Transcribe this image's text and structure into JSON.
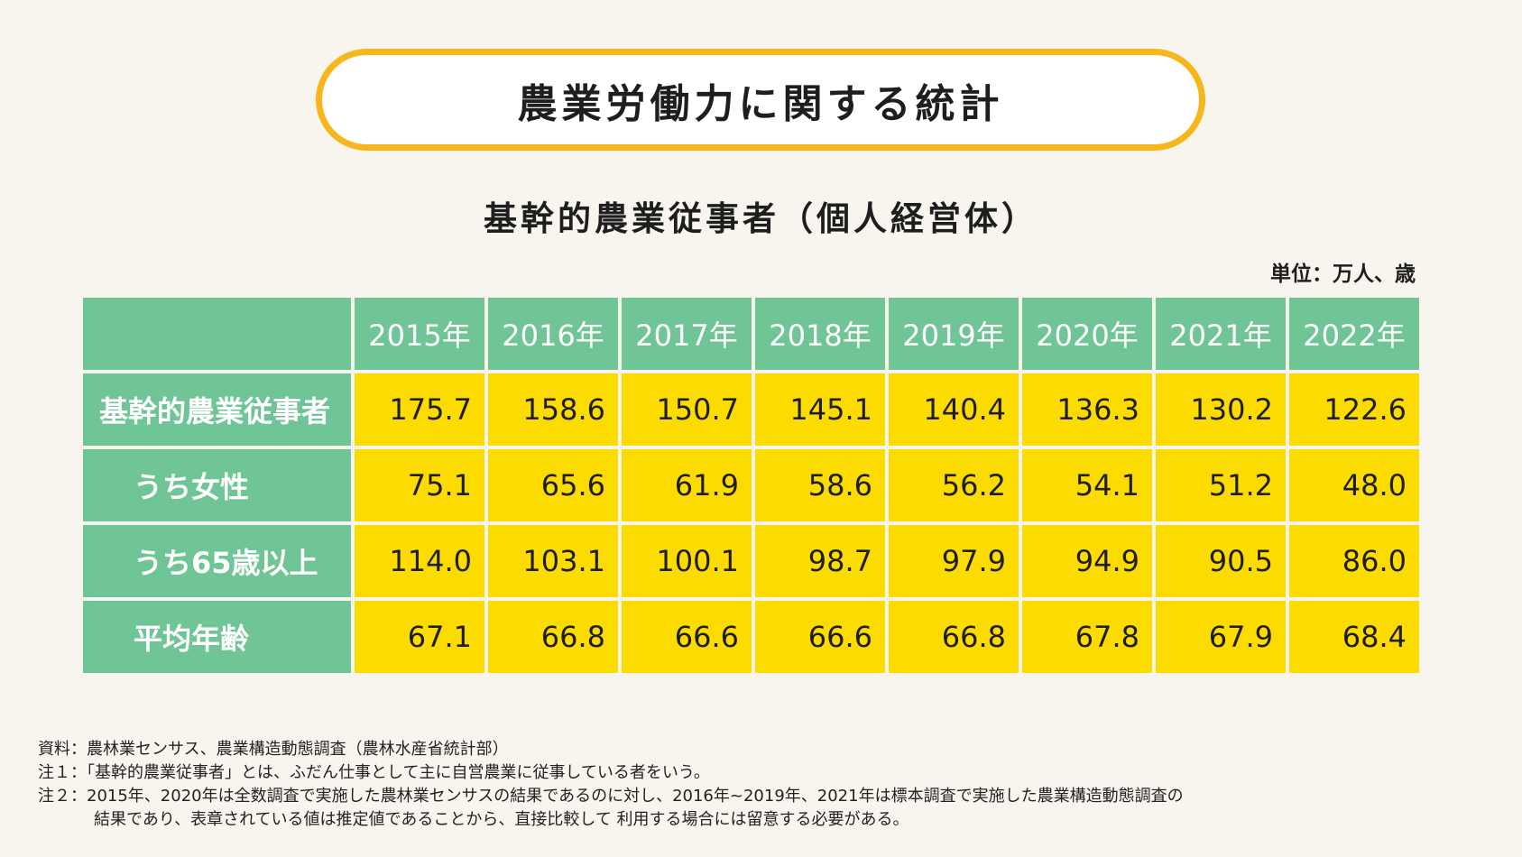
{
  "title": "農業労働力に関する統計",
  "subtitle": "基幹的農業従事者（個人経営体）",
  "unit": "単位：万人、歳",
  "table": {
    "years": [
      "2015年",
      "2016年",
      "2017年",
      "2018年",
      "2019年",
      "2020年",
      "2021年",
      "2022年"
    ],
    "rows": [
      {
        "label": "基幹的農業従事者",
        "values": [
          "175.7",
          "158.6",
          "150.7",
          "145.1",
          "140.4",
          "136.3",
          "130.2",
          "122.6"
        ]
      },
      {
        "label": "うち女性",
        "values": [
          "75.1",
          "65.6",
          "61.9",
          "58.6",
          "56.2",
          "54.1",
          "51.2",
          "48.0"
        ]
      },
      {
        "label": "うち65歳以上",
        "values": [
          "114.0",
          "103.1",
          "100.1",
          "98.7",
          "97.9",
          "94.9",
          "90.5",
          "86.0"
        ]
      },
      {
        "label": "平均年齢",
        "values": [
          "67.1",
          "66.8",
          "66.6",
          "66.6",
          "66.8",
          "67.8",
          "67.9",
          "68.4"
        ]
      }
    ]
  },
  "notes": {
    "source": "資料：農林業センサス、農業構造動態調査（農林水産省統計部）",
    "note1": "注１：「基幹的農業従事者」とは、ふだん仕事として主に自営農業に従事している者をいう。",
    "note2_line1": "注２：2015年、2020年は全数調査で実施した農林業センサスの結果であるのに対し、2016年~2019年、2021年は標本調査で実施した農業構造動態調査の",
    "note2_line2": "結果であり、表章されている値は推定値であることから、直接比較して 利用する場合には留意する必要がある。"
  },
  "colors": {
    "header_green": "#70c597",
    "cell_yellow": "#fcdb00",
    "pill_border": "#f6b61c",
    "background": "#f8f5ee"
  }
}
